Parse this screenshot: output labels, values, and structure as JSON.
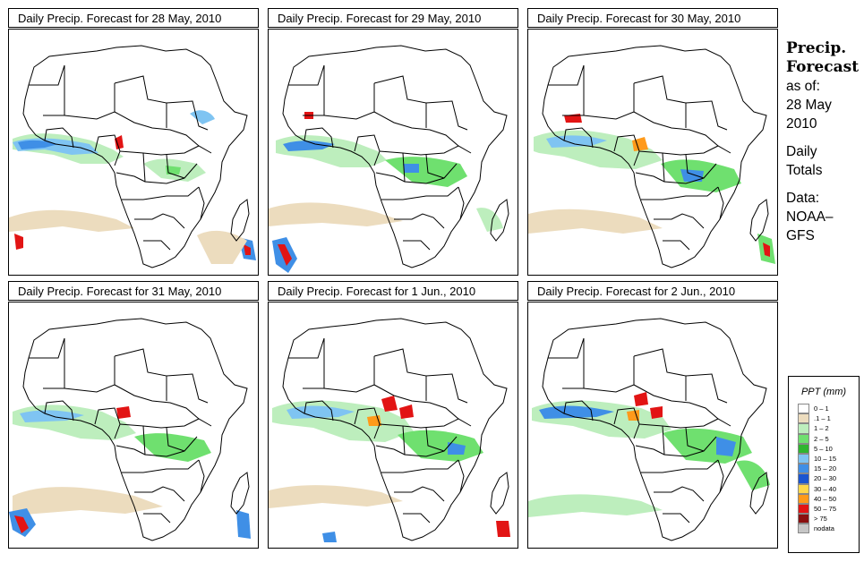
{
  "panels": [
    {
      "title": "Daily Precip. Forecast for  28 May, 2010"
    },
    {
      "title": "Daily Precip. Forecast for  29 May, 2010"
    },
    {
      "title": "Daily Precip. Forecast for  30 May, 2010"
    },
    {
      "title": "Daily Precip. Forecast for  31 May, 2010"
    },
    {
      "title": "Daily Precip. Forecast for  1 Jun., 2010"
    },
    {
      "title": "Daily Precip. Forecast for  2 Jun., 2010"
    }
  ],
  "sidebar": {
    "title_line1": "Precip.",
    "title_line2": "Forecast",
    "asof_label": "as of:",
    "asof_date_line1": "28 May",
    "asof_date_line2": "2010",
    "totals_line1": "Daily",
    "totals_line2": "Totals",
    "data_line1": "Data:",
    "data_line2": "NOAA–",
    "data_line3": "GFS"
  },
  "legend": {
    "title": "PPT (mm)",
    "items": [
      {
        "label": "0 – 1",
        "color": "#ffffff"
      },
      {
        "label": ".1 – 1",
        "color": "#ecdcbe"
      },
      {
        "label": "1 – 2",
        "color": "#bdeebd"
      },
      {
        "label": "2 – 5",
        "color": "#6fe06f"
      },
      {
        "label": "5 – 10",
        "color": "#2fb52f"
      },
      {
        "label": "10 – 15",
        "color": "#7fc4f2"
      },
      {
        "label": "15 – 20",
        "color": "#3f8fe6"
      },
      {
        "label": "20 – 30",
        "color": "#1a55d0"
      },
      {
        "label": "30 – 40",
        "color": "#ffd84a"
      },
      {
        "label": "40 – 50",
        "color": "#ff9a1a"
      },
      {
        "label": "50 – 75",
        "color": "#e21414"
      },
      {
        "label": "> 75",
        "color": "#8a1010"
      },
      {
        "label": "nodata",
        "color": "#c6c6c6"
      }
    ]
  }
}
